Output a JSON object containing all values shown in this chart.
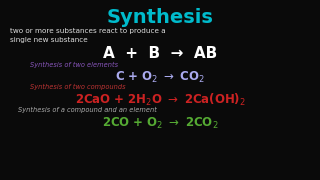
{
  "bg_color": "#0a0a0a",
  "title": "Synthesis",
  "title_color": "#00bbcc",
  "title_fontsize": 14,
  "subtitle1": "two or more substances react to produce a",
  "subtitle2": "single new substance",
  "subtitle_color": "#dddddd",
  "subtitle_fontsize": 5.2,
  "general_eq": "A  +  B  →  AB",
  "general_eq_color": "#ffffff",
  "general_eq_fontsize": 11,
  "label1": "Synthesis of two elements",
  "label1_color": "#8855bb",
  "label_fontsize": 4.8,
  "eq1_color": "#aaaaee",
  "label2": "Synthesis of two compounds",
  "label2_color": "#bb3333",
  "eq2_color": "#cc2222",
  "label3": "Synthesis of a compound and an element",
  "label3_color": "#aaaaaa",
  "eq3_color": "#55aa33"
}
